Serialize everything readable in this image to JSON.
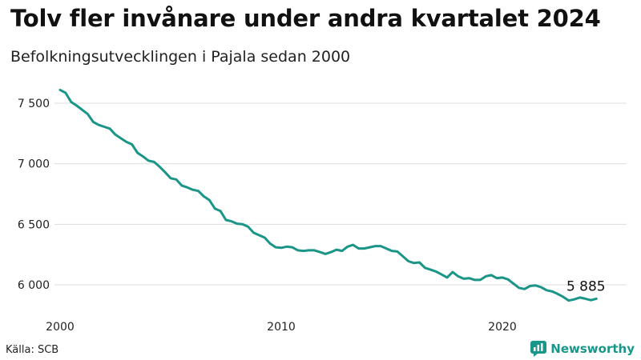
{
  "title": "Tolv fler invånare under andra kvartalet 2024",
  "subtitle": "Befolkningsutvecklingen i Pajala sedan 2000",
  "source": "Källa: SCB",
  "brand": "Newsworthy",
  "colors": {
    "line": "#1a9587",
    "brand": "#17978a",
    "grid": "#dddddd"
  },
  "chart_data": {
    "type": "line",
    "x_ticks": [
      2000,
      2010,
      2020
    ],
    "y_ticks": [
      6000,
      6500,
      7000,
      7500
    ],
    "y_tick_labels": [
      "6 000",
      "6 500",
      "7 000",
      "7 500"
    ],
    "xlim": [
      2000,
      2025
    ],
    "ylim": [
      5800,
      7650
    ],
    "grid": "horizontal",
    "end_label": "5 885",
    "series": [
      {
        "values": [
          {
            "x": 2000.0,
            "y": 7610
          },
          {
            "x": 2000.25,
            "y": 7585
          },
          {
            "x": 2000.5,
            "y": 7510
          },
          {
            "x": 2000.75,
            "y": 7480
          },
          {
            "x": 2001.0,
            "y": 7445
          },
          {
            "x": 2001.25,
            "y": 7410
          },
          {
            "x": 2001.5,
            "y": 7345
          },
          {
            "x": 2001.75,
            "y": 7320
          },
          {
            "x": 2002.0,
            "y": 7305
          },
          {
            "x": 2002.25,
            "y": 7290
          },
          {
            "x": 2002.5,
            "y": 7240
          },
          {
            "x": 2002.75,
            "y": 7210
          },
          {
            "x": 2003.0,
            "y": 7180
          },
          {
            "x": 2003.25,
            "y": 7160
          },
          {
            "x": 2003.5,
            "y": 7090
          },
          {
            "x": 2003.75,
            "y": 7060
          },
          {
            "x": 2004.0,
            "y": 7025
          },
          {
            "x": 2004.25,
            "y": 7015
          },
          {
            "x": 2004.5,
            "y": 6975
          },
          {
            "x": 2004.75,
            "y": 6930
          },
          {
            "x": 2005.0,
            "y": 6880
          },
          {
            "x": 2005.25,
            "y": 6870
          },
          {
            "x": 2005.5,
            "y": 6820
          },
          {
            "x": 2005.75,
            "y": 6805
          },
          {
            "x": 2006.0,
            "y": 6785
          },
          {
            "x": 2006.25,
            "y": 6775
          },
          {
            "x": 2006.5,
            "y": 6730
          },
          {
            "x": 2006.75,
            "y": 6700
          },
          {
            "x": 2007.0,
            "y": 6630
          },
          {
            "x": 2007.25,
            "y": 6610
          },
          {
            "x": 2007.5,
            "y": 6535
          },
          {
            "x": 2007.75,
            "y": 6525
          },
          {
            "x": 2008.0,
            "y": 6505
          },
          {
            "x": 2008.25,
            "y": 6500
          },
          {
            "x": 2008.5,
            "y": 6480
          },
          {
            "x": 2008.75,
            "y": 6430
          },
          {
            "x": 2009.0,
            "y": 6410
          },
          {
            "x": 2009.25,
            "y": 6390
          },
          {
            "x": 2009.5,
            "y": 6340
          },
          {
            "x": 2009.75,
            "y": 6310
          },
          {
            "x": 2010.0,
            "y": 6305
          },
          {
            "x": 2010.25,
            "y": 6315
          },
          {
            "x": 2010.5,
            "y": 6310
          },
          {
            "x": 2010.75,
            "y": 6285
          },
          {
            "x": 2011.0,
            "y": 6280
          },
          {
            "x": 2011.25,
            "y": 6285
          },
          {
            "x": 2011.5,
            "y": 6285
          },
          {
            "x": 2011.75,
            "y": 6270
          },
          {
            "x": 2012.0,
            "y": 6255
          },
          {
            "x": 2012.25,
            "y": 6270
          },
          {
            "x": 2012.5,
            "y": 6290
          },
          {
            "x": 2012.75,
            "y": 6280
          },
          {
            "x": 2013.0,
            "y": 6315
          },
          {
            "x": 2013.25,
            "y": 6330
          },
          {
            "x": 2013.5,
            "y": 6300
          },
          {
            "x": 2013.75,
            "y": 6300
          },
          {
            "x": 2014.0,
            "y": 6310
          },
          {
            "x": 2014.25,
            "y": 6320
          },
          {
            "x": 2014.5,
            "y": 6320
          },
          {
            "x": 2014.75,
            "y": 6300
          },
          {
            "x": 2015.0,
            "y": 6280
          },
          {
            "x": 2015.25,
            "y": 6275
          },
          {
            "x": 2015.5,
            "y": 6235
          },
          {
            "x": 2015.75,
            "y": 6195
          },
          {
            "x": 2016.0,
            "y": 6180
          },
          {
            "x": 2016.25,
            "y": 6185
          },
          {
            "x": 2016.5,
            "y": 6140
          },
          {
            "x": 2016.75,
            "y": 6125
          },
          {
            "x": 2017.0,
            "y": 6110
          },
          {
            "x": 2017.25,
            "y": 6085
          },
          {
            "x": 2017.5,
            "y": 6060
          },
          {
            "x": 2017.75,
            "y": 6105
          },
          {
            "x": 2018.0,
            "y": 6070
          },
          {
            "x": 2018.25,
            "y": 6050
          },
          {
            "x": 2018.5,
            "y": 6055
          },
          {
            "x": 2018.75,
            "y": 6040
          },
          {
            "x": 2019.0,
            "y": 6040
          },
          {
            "x": 2019.25,
            "y": 6070
          },
          {
            "x": 2019.5,
            "y": 6080
          },
          {
            "x": 2019.75,
            "y": 6055
          },
          {
            "x": 2020.0,
            "y": 6060
          },
          {
            "x": 2020.25,
            "y": 6045
          },
          {
            "x": 2020.5,
            "y": 6010
          },
          {
            "x": 2020.75,
            "y": 5975
          },
          {
            "x": 2021.0,
            "y": 5965
          },
          {
            "x": 2021.25,
            "y": 5990
          },
          {
            "x": 2021.5,
            "y": 5995
          },
          {
            "x": 2021.75,
            "y": 5980
          },
          {
            "x": 2022.0,
            "y": 5955
          },
          {
            "x": 2022.25,
            "y": 5945
          },
          {
            "x": 2022.5,
            "y": 5925
          },
          {
            "x": 2022.75,
            "y": 5900
          },
          {
            "x": 2023.0,
            "y": 5870
          },
          {
            "x": 2023.25,
            "y": 5880
          },
          {
            "x": 2023.5,
            "y": 5895
          },
          {
            "x": 2023.75,
            "y": 5885
          },
          {
            "x": 2024.0,
            "y": 5873
          },
          {
            "x": 2024.25,
            "y": 5885
          }
        ]
      }
    ]
  }
}
